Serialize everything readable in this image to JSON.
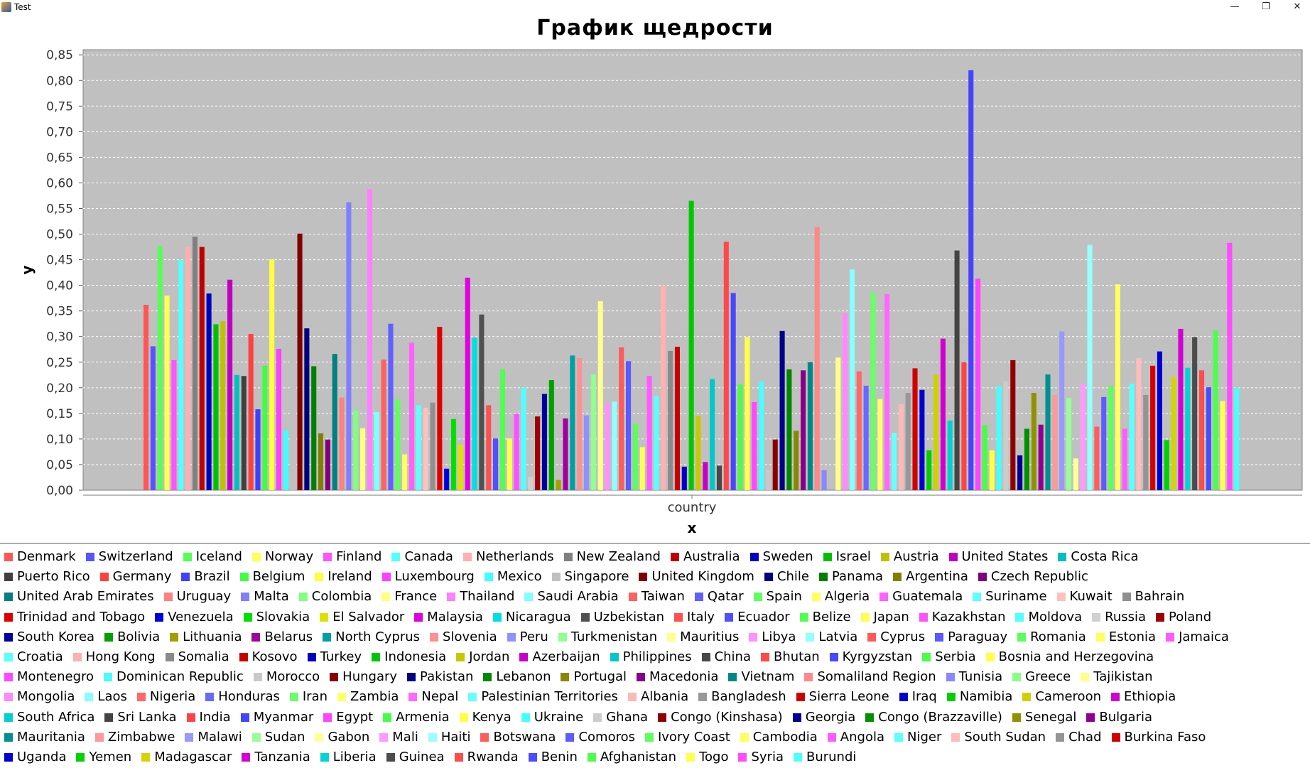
{
  "window": {
    "title": "Test",
    "min_icon": "minimize-icon",
    "max_icon": "restore-icon",
    "close_icon": "close-icon"
  },
  "chart_data": {
    "type": "bar",
    "title": "График щедрости",
    "xlabel": "x",
    "ylabel": "y",
    "categories": [
      "country"
    ],
    "ylim": [
      0,
      0.86
    ],
    "yticks": [
      "0,00",
      "0,05",
      "0,10",
      "0,15",
      "0,20",
      "0,25",
      "0,30",
      "0,35",
      "0,40",
      "0,45",
      "0,50",
      "0,55",
      "0,60",
      "0,65",
      "0,70",
      "0,75",
      "0,80",
      "0,85"
    ],
    "grid": true,
    "legend_position": "bottom",
    "series": [
      {
        "name": "Denmark",
        "value": 0.362,
        "color": "#ff5555"
      },
      {
        "name": "Switzerland",
        "value": 0.281,
        "color": "#5555ff"
      },
      {
        "name": "Iceland",
        "value": 0.477,
        "color": "#55ff55"
      },
      {
        "name": "Norway",
        "value": 0.38,
        "color": "#ffff55"
      },
      {
        "name": "Finland",
        "value": 0.254,
        "color": "#ff55ff"
      },
      {
        "name": "Canada",
        "value": 0.45,
        "color": "#55ffff"
      },
      {
        "name": "Netherlands",
        "value": 0.475,
        "color": "#ffafaf"
      },
      {
        "name": "New Zealand",
        "value": 0.495,
        "color": "#808080"
      },
      {
        "name": "Australia",
        "value": 0.475,
        "color": "#c00000"
      },
      {
        "name": "Sweden",
        "value": 0.384,
        "color": "#0000c0"
      },
      {
        "name": "Israel",
        "value": 0.324,
        "color": "#00c000"
      },
      {
        "name": "Austria",
        "value": 0.33,
        "color": "#c0c000"
      },
      {
        "name": "United States",
        "value": 0.411,
        "color": "#c000c0"
      },
      {
        "name": "Costa Rica",
        "value": 0.225,
        "color": "#00c0c0"
      },
      {
        "name": "Puerto Rico",
        "value": 0.223,
        "color": "#404040"
      },
      {
        "name": "Germany",
        "value": 0.305,
        "color": "#ff4040"
      },
      {
        "name": "Brazil",
        "value": 0.158,
        "color": "#4040ff"
      },
      {
        "name": "Belgium",
        "value": 0.243,
        "color": "#40ff40"
      },
      {
        "name": "Ireland",
        "value": 0.451,
        "color": "#ffff40"
      },
      {
        "name": "Luxembourg",
        "value": 0.276,
        "color": "#ff40ff"
      },
      {
        "name": "Mexico",
        "value": 0.117,
        "color": "#40ffff"
      },
      {
        "name": "Singapore",
        "value": 0.328,
        "color": "#c0c0c0"
      },
      {
        "name": "United Kingdom",
        "value": 0.501,
        "color": "#800000"
      },
      {
        "name": "Chile",
        "value": 0.316,
        "color": "#000080"
      },
      {
        "name": "Panama",
        "value": 0.242,
        "color": "#008000"
      },
      {
        "name": "Argentina",
        "value": 0.111,
        "color": "#808000"
      },
      {
        "name": "Czech Republic",
        "value": 0.099,
        "color": "#800080"
      },
      {
        "name": "United Arab Emirates",
        "value": 0.266,
        "color": "#008080"
      },
      {
        "name": "Uruguay",
        "value": 0.181,
        "color": "#ff8080"
      },
      {
        "name": "Malta",
        "value": 0.562,
        "color": "#8080ff"
      },
      {
        "name": "Colombia",
        "value": 0.156,
        "color": "#80ff80"
      },
      {
        "name": "France",
        "value": 0.121,
        "color": "#ffff80"
      },
      {
        "name": "Thailand",
        "value": 0.588,
        "color": "#ff80ff"
      },
      {
        "name": "Saudi Arabia",
        "value": 0.153,
        "color": "#80ffff"
      },
      {
        "name": "Taiwan",
        "value": 0.255,
        "color": "#ff6060"
      },
      {
        "name": "Qatar",
        "value": 0.325,
        "color": "#6060ff"
      },
      {
        "name": "Spain",
        "value": 0.177,
        "color": "#60ff60"
      },
      {
        "name": "Algeria",
        "value": 0.07,
        "color": "#ffff60"
      },
      {
        "name": "Guatemala",
        "value": 0.288,
        "color": "#ff60ff"
      },
      {
        "name": "Suriname",
        "value": 0.166,
        "color": "#60ffff"
      },
      {
        "name": "Kuwait",
        "value": 0.161,
        "color": "#ffc0c0"
      },
      {
        "name": "Bahrain",
        "value": 0.171,
        "color": "#909090"
      },
      {
        "name": "Trinidad and Tobago",
        "value": 0.319,
        "color": "#e00000"
      },
      {
        "name": "Venezuela",
        "value": 0.042,
        "color": "#0000e0"
      },
      {
        "name": "Slovakia",
        "value": 0.139,
        "color": "#00e000"
      },
      {
        "name": "El Salvador",
        "value": 0.089,
        "color": "#e0e000"
      },
      {
        "name": "Malaysia",
        "value": 0.415,
        "color": "#e000e0"
      },
      {
        "name": "Nicaragua",
        "value": 0.298,
        "color": "#00e0e0"
      },
      {
        "name": "Uzbekistan",
        "value": 0.343,
        "color": "#505050"
      },
      {
        "name": "Italy",
        "value": 0.166,
        "color": "#ff5050"
      },
      {
        "name": "Ecuador",
        "value": 0.101,
        "color": "#5050ff"
      },
      {
        "name": "Belize",
        "value": 0.237,
        "color": "#50ff50"
      },
      {
        "name": "Japan",
        "value": 0.101,
        "color": "#ffff50"
      },
      {
        "name": "Kazakhstan",
        "value": 0.149,
        "color": "#ff50ff"
      },
      {
        "name": "Moldova",
        "value": 0.2,
        "color": "#50ffff"
      },
      {
        "name": "Russia",
        "value": 0.026,
        "color": "#d0d0d0"
      },
      {
        "name": "Poland",
        "value": 0.144,
        "color": "#a00000"
      },
      {
        "name": "South Korea",
        "value": 0.188,
        "color": "#0000a0"
      },
      {
        "name": "Bolivia",
        "value": 0.215,
        "color": "#00a000"
      },
      {
        "name": "Lithuania",
        "value": 0.02,
        "color": "#a0a000"
      },
      {
        "name": "Belarus",
        "value": 0.14,
        "color": "#a000a0"
      },
      {
        "name": "North Cyprus",
        "value": 0.263,
        "color": "#00a0a0"
      },
      {
        "name": "Slovenia",
        "value": 0.258,
        "color": "#ff9090"
      },
      {
        "name": "Peru",
        "value": 0.146,
        "color": "#9090ff"
      },
      {
        "name": "Turkmenistan",
        "value": 0.226,
        "color": "#90ff90"
      },
      {
        "name": "Mauritius",
        "value": 0.369,
        "color": "#ffff90"
      },
      {
        "name": "Libya",
        "value": 0.171,
        "color": "#ff90ff"
      },
      {
        "name": "Latvia",
        "value": 0.173,
        "color": "#90ffff"
      },
      {
        "name": "Cyprus",
        "value": 0.279,
        "color": "#ff5a5a"
      },
      {
        "name": "Paraguay",
        "value": 0.252,
        "color": "#5a5aff"
      },
      {
        "name": "Romania",
        "value": 0.13,
        "color": "#5aff5a"
      },
      {
        "name": "Estonia",
        "value": 0.084,
        "color": "#ffff5a"
      },
      {
        "name": "Jamaica",
        "value": 0.223,
        "color": "#ff5aff"
      },
      {
        "name": "Croatia",
        "value": 0.184,
        "color": "#5affff"
      },
      {
        "name": "Hong Kong",
        "value": 0.4,
        "color": "#ffb0b0"
      },
      {
        "name": "Somalia",
        "value": 0.272,
        "color": "#8a8a8a"
      },
      {
        "name": "Kosovo",
        "value": 0.28,
        "color": "#c80000"
      },
      {
        "name": "Turkey",
        "value": 0.046,
        "color": "#0000c8"
      },
      {
        "name": "Indonesia",
        "value": 0.565,
        "color": "#00c800"
      },
      {
        "name": "Jordan",
        "value": 0.145,
        "color": "#c8c800"
      },
      {
        "name": "Azerbaijan",
        "value": 0.055,
        "color": "#c800c8"
      },
      {
        "name": "Philippines",
        "value": 0.217,
        "color": "#00c8c8"
      },
      {
        "name": "China",
        "value": 0.048,
        "color": "#484848"
      },
      {
        "name": "Bhutan",
        "value": 0.485,
        "color": "#ff4848"
      },
      {
        "name": "Kyrgyzstan",
        "value": 0.385,
        "color": "#4848ff"
      },
      {
        "name": "Serbia",
        "value": 0.207,
        "color": "#48ff48"
      },
      {
        "name": "Bosnia and Herzegovina",
        "value": 0.299,
        "color": "#ffff48"
      },
      {
        "name": "Montenegro",
        "value": 0.172,
        "color": "#ff48ff"
      },
      {
        "name": "Dominican Republic",
        "value": 0.212,
        "color": "#48ffff"
      },
      {
        "name": "Morocco",
        "value": 0.04,
        "color": "#c8c8c8"
      },
      {
        "name": "Hungary",
        "value": 0.099,
        "color": "#880000"
      },
      {
        "name": "Pakistan",
        "value": 0.311,
        "color": "#000088"
      },
      {
        "name": "Lebanon",
        "value": 0.236,
        "color": "#008800"
      },
      {
        "name": "Portugal",
        "value": 0.116,
        "color": "#888800"
      },
      {
        "name": "Macedonia",
        "value": 0.234,
        "color": "#880088"
      },
      {
        "name": "Vietnam",
        "value": 0.25,
        "color": "#008888"
      },
      {
        "name": "Somaliland Region",
        "value": 0.514,
        "color": "#ff8888"
      },
      {
        "name": "Tunisia",
        "value": 0.039,
        "color": "#8888ff"
      },
      {
        "name": "Greece",
        "value": 0.0,
        "color": "#88ff88"
      },
      {
        "name": "Tajikistan",
        "value": 0.259,
        "color": "#ffff88"
      },
      {
        "name": "Mongolia",
        "value": 0.346,
        "color": "#ff88ff"
      },
      {
        "name": "Laos",
        "value": 0.431,
        "color": "#88ffff"
      },
      {
        "name": "Nigeria",
        "value": 0.232,
        "color": "#ff6868"
      },
      {
        "name": "Honduras",
        "value": 0.204,
        "color": "#6868ff"
      },
      {
        "name": "Iran",
        "value": 0.386,
        "color": "#68ff68"
      },
      {
        "name": "Zambia",
        "value": 0.178,
        "color": "#ffff68"
      },
      {
        "name": "Nepal",
        "value": 0.383,
        "color": "#ff68ff"
      },
      {
        "name": "Palestinian Territories",
        "value": 0.112,
        "color": "#68ffff"
      },
      {
        "name": "Albania",
        "value": 0.168,
        "color": "#ffb8b8"
      },
      {
        "name": "Bangladesh",
        "value": 0.19,
        "color": "#989898"
      },
      {
        "name": "Sierra Leone",
        "value": 0.238,
        "color": "#d00000"
      },
      {
        "name": "Iraq",
        "value": 0.196,
        "color": "#0000d0"
      },
      {
        "name": "Namibia",
        "value": 0.078,
        "color": "#00d000"
      },
      {
        "name": "Cameroon",
        "value": 0.226,
        "color": "#d0d000"
      },
      {
        "name": "Ethiopia",
        "value": 0.296,
        "color": "#d000d0"
      },
      {
        "name": "South Africa",
        "value": 0.136,
        "color": "#00d0d0"
      },
      {
        "name": "Sri Lanka",
        "value": 0.468,
        "color": "#444444"
      },
      {
        "name": "India",
        "value": 0.25,
        "color": "#ff4444"
      },
      {
        "name": "Myanmar",
        "value": 0.82,
        "color": "#4444ff"
      },
      {
        "name": "Egypt",
        "value": 0.413,
        "color": "#ff44ff"
      },
      {
        "name": "Armenia",
        "value": 0.127,
        "color": "#44ff44"
      },
      {
        "name": "Kenya",
        "value": 0.078,
        "color": "#ffff44"
      },
      {
        "name": "Ukraine",
        "value": 0.203,
        "color": "#44ffff"
      },
      {
        "name": "Ghana",
        "value": 0.212,
        "color": "#cccccc"
      },
      {
        "name": "Congo (Kinshasa)",
        "value": 0.254,
        "color": "#900000"
      },
      {
        "name": "Georgia",
        "value": 0.068,
        "color": "#000090"
      },
      {
        "name": "Congo (Brazzaville)",
        "value": 0.12,
        "color": "#009000"
      },
      {
        "name": "Senegal",
        "value": 0.19,
        "color": "#909000"
      },
      {
        "name": "Bulgaria",
        "value": 0.128,
        "color": "#900090"
      },
      {
        "name": "Mauritania",
        "value": 0.226,
        "color": "#009090"
      },
      {
        "name": "Zimbabwe",
        "value": 0.186,
        "color": "#ff9898"
      },
      {
        "name": "Malawi",
        "value": 0.31,
        "color": "#9898ff"
      },
      {
        "name": "Sudan",
        "value": 0.18,
        "color": "#98ff98"
      },
      {
        "name": "Gabon",
        "value": 0.062,
        "color": "#ffff98"
      },
      {
        "name": "Mali",
        "value": 0.208,
        "color": "#ff98ff"
      },
      {
        "name": "Haiti",
        "value": 0.479,
        "color": "#98ffff"
      },
      {
        "name": "Botswana",
        "value": 0.124,
        "color": "#ff5c5c"
      },
      {
        "name": "Comoros",
        "value": 0.182,
        "color": "#5c5cff"
      },
      {
        "name": "Ivory Coast",
        "value": 0.204,
        "color": "#5cff5c"
      },
      {
        "name": "Cambodia",
        "value": 0.402,
        "color": "#ffff5c"
      },
      {
        "name": "Angola",
        "value": 0.12,
        "color": "#ff5cff"
      },
      {
        "name": "Niger",
        "value": 0.208,
        "color": "#5cffff"
      },
      {
        "name": "South Sudan",
        "value": 0.258,
        "color": "#ffbcbc"
      },
      {
        "name": "Chad",
        "value": 0.186,
        "color": "#949494"
      },
      {
        "name": "Burkina Faso",
        "value": 0.243,
        "color": "#d40000"
      },
      {
        "name": "Uganda",
        "value": 0.271,
        "color": "#0000d4"
      },
      {
        "name": "Yemen",
        "value": 0.098,
        "color": "#00d400"
      },
      {
        "name": "Madagascar",
        "value": 0.221,
        "color": "#d4d400"
      },
      {
        "name": "Tanzania",
        "value": 0.315,
        "color": "#d400d4"
      },
      {
        "name": "Liberia",
        "value": 0.239,
        "color": "#00d4d4"
      },
      {
        "name": "Guinea",
        "value": 0.299,
        "color": "#4c4c4c"
      },
      {
        "name": "Rwanda",
        "value": 0.234,
        "color": "#ff4c4c"
      },
      {
        "name": "Benin",
        "value": 0.201,
        "color": "#4c4cff"
      },
      {
        "name": "Afghanistan",
        "value": 0.312,
        "color": "#4cff4c"
      },
      {
        "name": "Togo",
        "value": 0.174,
        "color": "#ffff4c"
      },
      {
        "name": "Syria",
        "value": 0.483,
        "color": "#ff4cff"
      },
      {
        "name": "Burundi",
        "value": 0.2,
        "color": "#4cffff"
      }
    ]
  }
}
